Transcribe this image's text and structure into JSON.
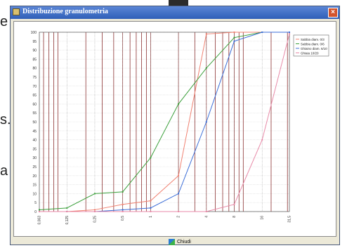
{
  "background": {
    "letters": [
      "e",
      "s.",
      "a"
    ]
  },
  "window": {
    "title": "Distribuzione granulometria",
    "close_glyph": "×"
  },
  "footer": {
    "close_label": "Chiudi"
  },
  "chart_data": {
    "type": "line",
    "x_scale": "log",
    "x_ticks": [
      "0,063",
      "0,125",
      "0,25",
      "0,5",
      "1",
      "2",
      "4",
      "8",
      "16",
      "31,5"
    ],
    "x_values": [
      0.063,
      0.125,
      0.25,
      0.5,
      1,
      2,
      4,
      8,
      16,
      31.5
    ],
    "ylim": [
      0,
      100
    ],
    "y_ticks": [
      0,
      5,
      10,
      15,
      20,
      25,
      30,
      35,
      40,
      45,
      50,
      55,
      60,
      65,
      70,
      75,
      80,
      85,
      90,
      95,
      100
    ],
    "grid": true,
    "legend_position": "top-right",
    "series": [
      {
        "name": "Sabbia diam. 0/3",
        "color": "#f08070",
        "x": [
          0.063,
          0.125,
          0.25,
          0.5,
          1,
          2,
          4,
          8,
          16,
          31.5
        ],
        "y": [
          0,
          0,
          1,
          4,
          6,
          20,
          99,
          100,
          100,
          100
        ]
      },
      {
        "name": "Sabbia diam. 0/6",
        "color": "#3ca03c",
        "x": [
          0.063,
          0.125,
          0.25,
          0.5,
          1,
          2,
          4,
          8,
          16,
          31.5
        ],
        "y": [
          1,
          2,
          10,
          11,
          30,
          60,
          80,
          97,
          100,
          100
        ]
      },
      {
        "name": "Ghiaino diam. 6/10",
        "color": "#3c6ed8",
        "x": [
          0.063,
          0.125,
          0.25,
          0.5,
          1,
          2,
          4,
          8,
          16,
          31.5
        ],
        "y": [
          0,
          0,
          0,
          1,
          2,
          10,
          50,
          95,
          100,
          100
        ]
      },
      {
        "name": "Ghiaia 10/20",
        "color": "#e88aa8",
        "x": [
          0.063,
          0.125,
          0.25,
          0.5,
          1,
          2,
          4,
          8,
          16,
          31.5
        ],
        "y": [
          0,
          0,
          0,
          0,
          0,
          0,
          0,
          4,
          40,
          99
        ]
      }
    ]
  }
}
